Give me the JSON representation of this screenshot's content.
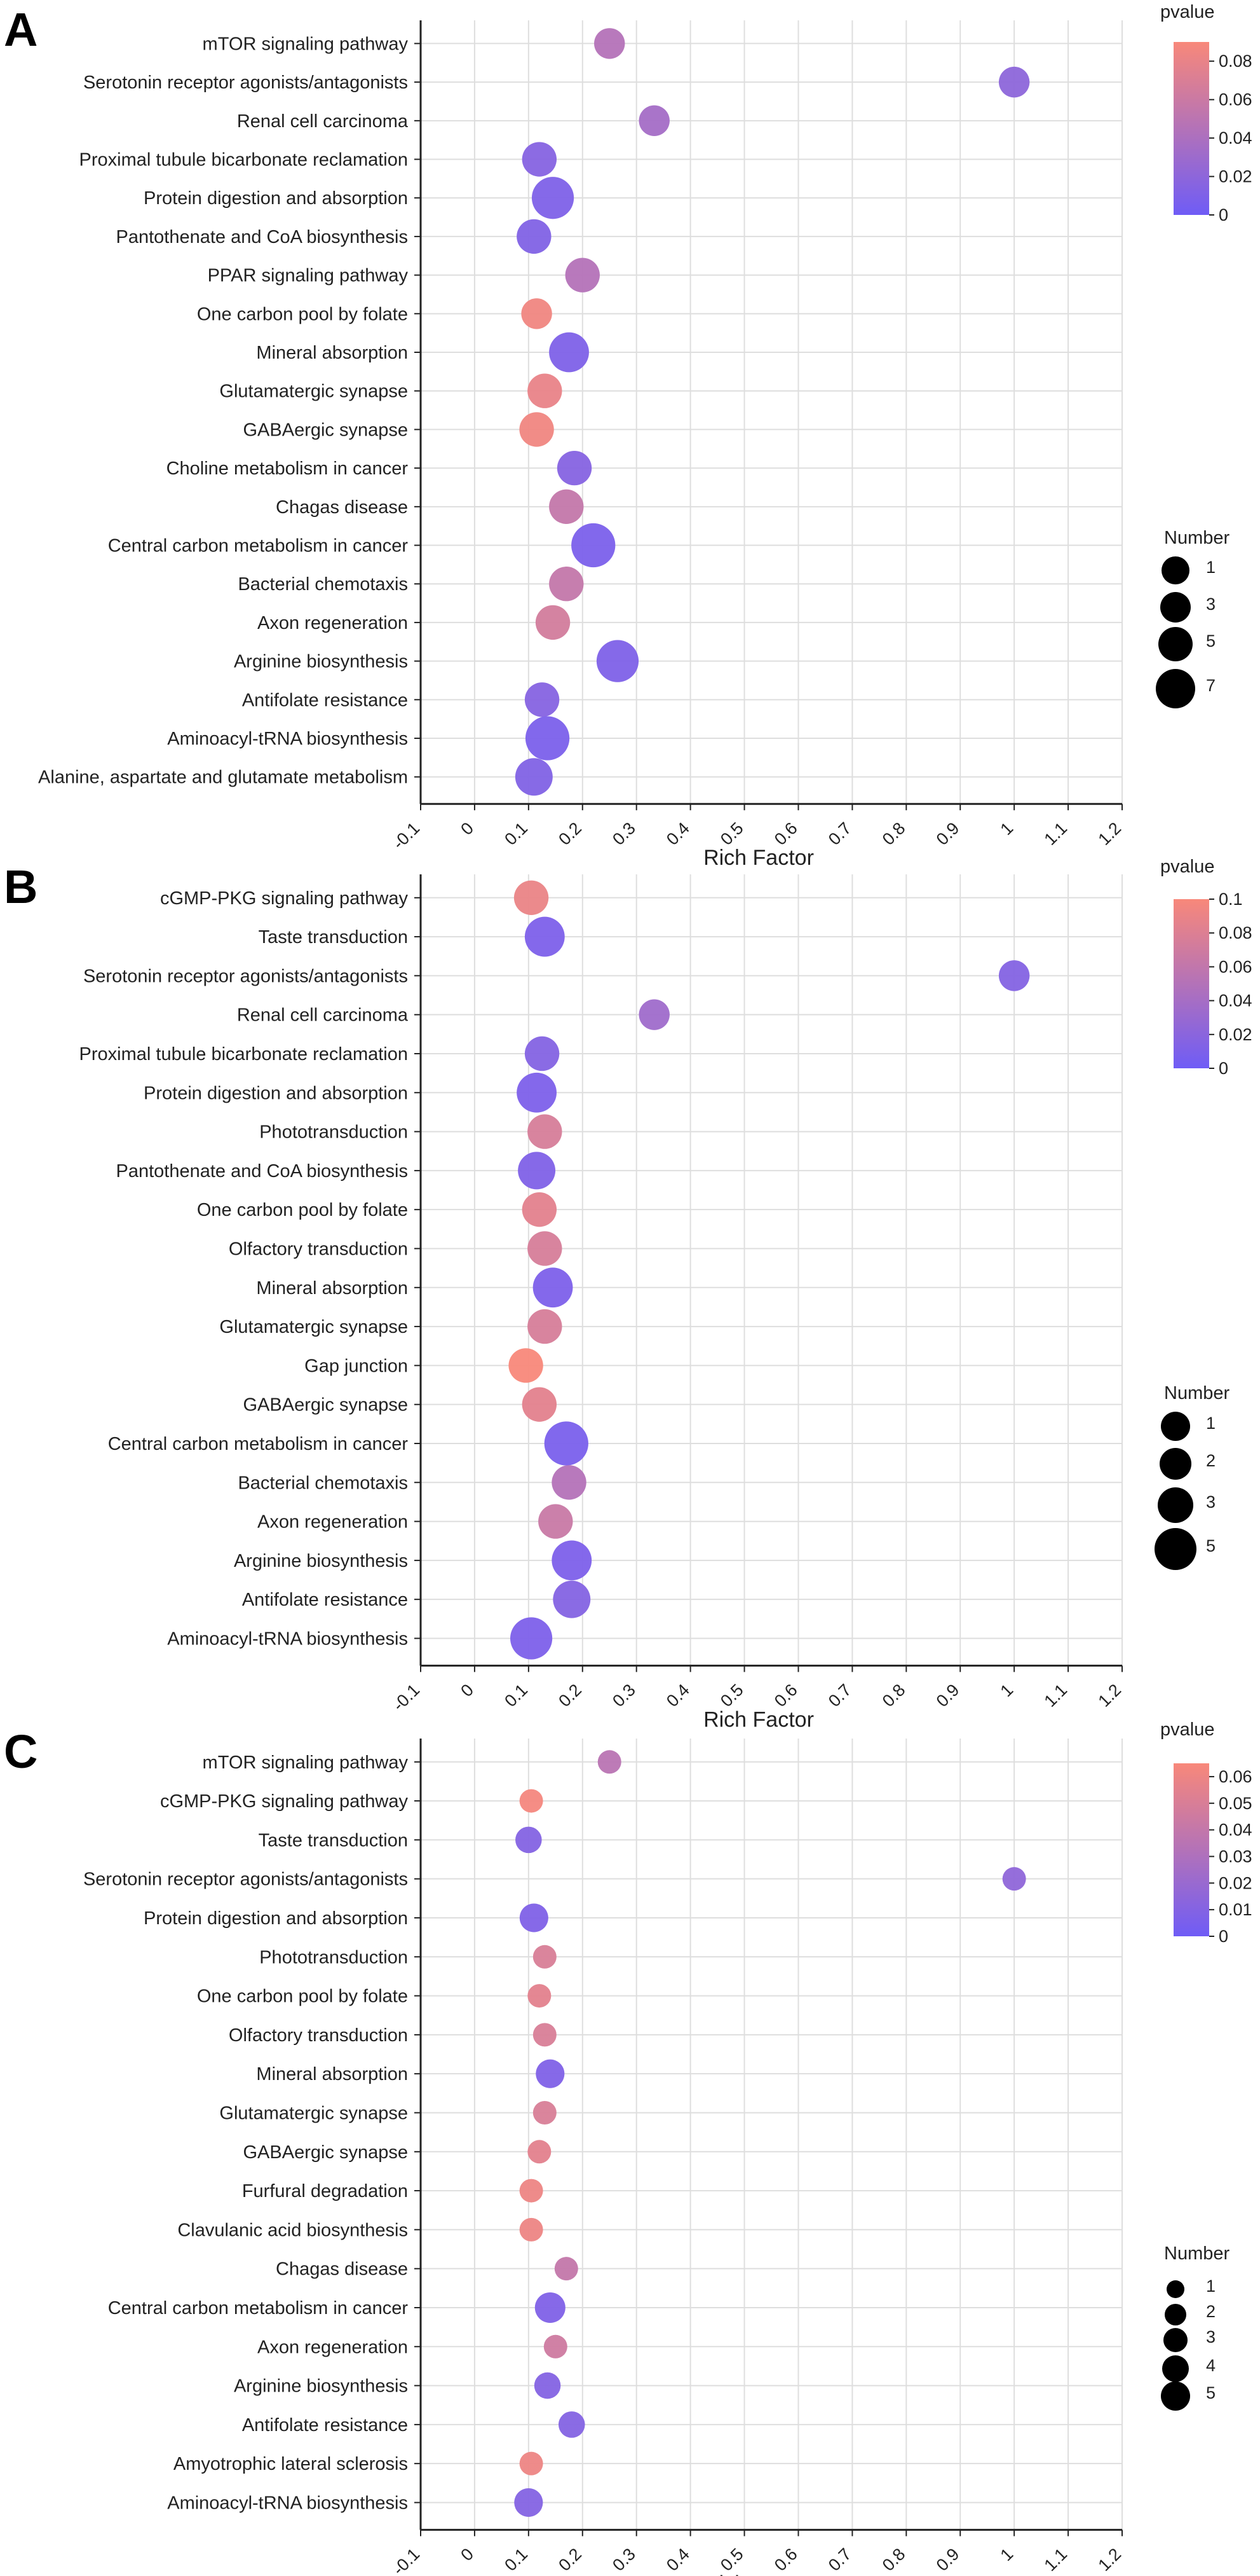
{
  "figure": {
    "x_axis_title": "Rich Factor",
    "pvalue_legend_title": "pvalue",
    "number_legend_title": "Number",
    "color_low": "#6f5cf6",
    "color_high": "#f8887a"
  },
  "chart_data": [
    {
      "panel": "A",
      "type": "scatter",
      "xlabel": "Rich Factor",
      "xlim": [
        -0.1,
        1.2
      ],
      "xticks": [
        "-0.1",
        "0",
        "0.1",
        "0.2",
        "0.3",
        "0.4",
        "0.5",
        "0.6",
        "0.7",
        "0.8",
        "0.9",
        "1",
        "1.1",
        "1.2"
      ],
      "grid": true,
      "pvalue_range": [
        0,
        0.09
      ],
      "pvalue_ticks": [
        "0.08",
        "0.06",
        "0.04",
        "0.02",
        "0"
      ],
      "number_ticks": [
        "1",
        "3",
        "5",
        "7"
      ],
      "points": [
        {
          "term": "mTOR signaling pathway",
          "rich_factor": 0.25,
          "pvalue": 0.045,
          "number": 1
        },
        {
          "term": "Serotonin receptor agonists/antagonists",
          "rich_factor": 1.0,
          "pvalue": 0.02,
          "number": 1
        },
        {
          "term": "Renal cell carcinoma",
          "rich_factor": 0.333,
          "pvalue": 0.035,
          "number": 1
        },
        {
          "term": "Proximal tubule bicarbonate reclamation",
          "rich_factor": 0.12,
          "pvalue": 0.015,
          "number": 2
        },
        {
          "term": "Protein digestion and absorption",
          "rich_factor": 0.145,
          "pvalue": 0.01,
          "number": 5
        },
        {
          "term": "Pantothenate and CoA biosynthesis",
          "rich_factor": 0.11,
          "pvalue": 0.012,
          "number": 2
        },
        {
          "term": "PPAR signaling pathway",
          "rich_factor": 0.2,
          "pvalue": 0.045,
          "number": 2
        },
        {
          "term": "One carbon pool by folate",
          "rich_factor": 0.115,
          "pvalue": 0.085,
          "number": 1
        },
        {
          "term": "Mineral absorption",
          "rich_factor": 0.175,
          "pvalue": 0.01,
          "number": 4
        },
        {
          "term": "Glutamatergic synapse",
          "rich_factor": 0.13,
          "pvalue": 0.08,
          "number": 2
        },
        {
          "term": "GABAergic synapse",
          "rich_factor": 0.115,
          "pvalue": 0.085,
          "number": 2
        },
        {
          "term": "Choline metabolism in cancer",
          "rich_factor": 0.185,
          "pvalue": 0.015,
          "number": 2
        },
        {
          "term": "Chagas disease",
          "rich_factor": 0.17,
          "pvalue": 0.055,
          "number": 2
        },
        {
          "term": "Central carbon metabolism in cancer",
          "rich_factor": 0.22,
          "pvalue": 0.008,
          "number": 6
        },
        {
          "term": "Bacterial chemotaxis",
          "rich_factor": 0.17,
          "pvalue": 0.055,
          "number": 2
        },
        {
          "term": "Axon regeneration",
          "rich_factor": 0.145,
          "pvalue": 0.065,
          "number": 2
        },
        {
          "term": "Arginine biosynthesis",
          "rich_factor": 0.265,
          "pvalue": 0.01,
          "number": 5
        },
        {
          "term": "Antifolate resistance",
          "rich_factor": 0.125,
          "pvalue": 0.015,
          "number": 2
        },
        {
          "term": "Aminoacyl-tRNA biosynthesis",
          "rich_factor": 0.135,
          "pvalue": 0.008,
          "number": 6
        },
        {
          "term": "Alanine, aspartate and glutamate metabolism",
          "rich_factor": 0.11,
          "pvalue": 0.012,
          "number": 3
        }
      ]
    },
    {
      "panel": "B",
      "type": "scatter",
      "xlabel": "Rich Factor",
      "xlim": [
        -0.1,
        1.2
      ],
      "xticks": [
        "-0.1",
        "0",
        "0.1",
        "0.2",
        "0.3",
        "0.4",
        "0.5",
        "0.6",
        "0.7",
        "0.8",
        "0.9",
        "1",
        "1.1",
        "1.2"
      ],
      "grid": true,
      "pvalue_range": [
        0,
        0.1
      ],
      "pvalue_ticks": [
        "0.1",
        "0.08",
        "0.06",
        "0.04",
        "0.02",
        "0"
      ],
      "number_ticks": [
        "1",
        "2",
        "3",
        "5"
      ],
      "points": [
        {
          "term": "cGMP-PKG signaling pathway",
          "rich_factor": 0.105,
          "pvalue": 0.09,
          "number": 2
        },
        {
          "term": "Taste transduction",
          "rich_factor": 0.13,
          "pvalue": 0.01,
          "number": 4
        },
        {
          "term": "Serotonin receptor agonists/antagonists",
          "rich_factor": 1.0,
          "pvalue": 0.015,
          "number": 1
        },
        {
          "term": "Renal cell carcinoma",
          "rich_factor": 0.333,
          "pvalue": 0.035,
          "number": 1
        },
        {
          "term": "Proximal tubule bicarbonate reclamation",
          "rich_factor": 0.125,
          "pvalue": 0.015,
          "number": 2
        },
        {
          "term": "Protein digestion and absorption",
          "rich_factor": 0.115,
          "pvalue": 0.01,
          "number": 4
        },
        {
          "term": "Phototransduction",
          "rich_factor": 0.13,
          "pvalue": 0.075,
          "number": 2
        },
        {
          "term": "Pantothenate and CoA biosynthesis",
          "rich_factor": 0.115,
          "pvalue": 0.012,
          "number": 3
        },
        {
          "term": "One carbon pool by folate",
          "rich_factor": 0.12,
          "pvalue": 0.085,
          "number": 2
        },
        {
          "term": "Olfactory transduction",
          "rich_factor": 0.13,
          "pvalue": 0.075,
          "number": 2
        },
        {
          "term": "Mineral absorption",
          "rich_factor": 0.145,
          "pvalue": 0.01,
          "number": 4
        },
        {
          "term": "Glutamatergic synapse",
          "rich_factor": 0.13,
          "pvalue": 0.075,
          "number": 2
        },
        {
          "term": "Gap junction",
          "rich_factor": 0.095,
          "pvalue": 0.1,
          "number": 2
        },
        {
          "term": "GABAergic synapse",
          "rich_factor": 0.12,
          "pvalue": 0.085,
          "number": 2
        },
        {
          "term": "Central carbon metabolism in cancer",
          "rich_factor": 0.17,
          "pvalue": 0.008,
          "number": 6
        },
        {
          "term": "Bacterial chemotaxis",
          "rich_factor": 0.175,
          "pvalue": 0.05,
          "number": 2
        },
        {
          "term": "Axon regeneration",
          "rich_factor": 0.15,
          "pvalue": 0.065,
          "number": 2
        },
        {
          "term": "Arginine biosynthesis",
          "rich_factor": 0.18,
          "pvalue": 0.01,
          "number": 4
        },
        {
          "term": "Antifolate resistance",
          "rich_factor": 0.18,
          "pvalue": 0.015,
          "number": 3
        },
        {
          "term": "Aminoacyl-tRNA biosynthesis",
          "rich_factor": 0.105,
          "pvalue": 0.01,
          "number": 5
        }
      ]
    },
    {
      "panel": "C",
      "type": "scatter",
      "xlabel": "Rich Factor",
      "xlim": [
        -0.1,
        1.2
      ],
      "xticks": [
        "-0.1",
        "0",
        "0.1",
        "0.2",
        "0.3",
        "0.4",
        "0.5",
        "0.6",
        "0.7",
        "0.8",
        "0.9",
        "1",
        "1.1",
        "1.2"
      ],
      "grid": true,
      "pvalue_range": [
        0,
        0.065
      ],
      "pvalue_ticks": [
        "0.06",
        "0.05",
        "0.04",
        "0.03",
        "0.02",
        "0.01",
        "0"
      ],
      "number_ticks": [
        "1",
        "2",
        "3",
        "4",
        "5"
      ],
      "points": [
        {
          "term": "mTOR signaling pathway",
          "rich_factor": 0.25,
          "pvalue": 0.035,
          "number": 1
        },
        {
          "term": "cGMP-PKG signaling pathway",
          "rich_factor": 0.105,
          "pvalue": 0.063,
          "number": 1
        },
        {
          "term": "Taste transduction",
          "rich_factor": 0.1,
          "pvalue": 0.01,
          "number": 2
        },
        {
          "term": "Serotonin receptor agonists/antagonists",
          "rich_factor": 1.0,
          "pvalue": 0.015,
          "number": 1
        },
        {
          "term": "Protein digestion and absorption",
          "rich_factor": 0.11,
          "pvalue": 0.008,
          "number": 3
        },
        {
          "term": "Phototransduction",
          "rich_factor": 0.13,
          "pvalue": 0.05,
          "number": 1
        },
        {
          "term": "One carbon pool by folate",
          "rich_factor": 0.12,
          "pvalue": 0.055,
          "number": 1
        },
        {
          "term": "Olfactory transduction",
          "rich_factor": 0.13,
          "pvalue": 0.05,
          "number": 1
        },
        {
          "term": "Mineral absorption",
          "rich_factor": 0.14,
          "pvalue": 0.008,
          "number": 3
        },
        {
          "term": "Glutamatergic synapse",
          "rich_factor": 0.13,
          "pvalue": 0.05,
          "number": 1
        },
        {
          "term": "GABAergic synapse",
          "rich_factor": 0.12,
          "pvalue": 0.055,
          "number": 1
        },
        {
          "term": "Furfural degradation",
          "rich_factor": 0.105,
          "pvalue": 0.06,
          "number": 1
        },
        {
          "term": "Clavulanic acid biosynthesis",
          "rich_factor": 0.105,
          "pvalue": 0.06,
          "number": 1
        },
        {
          "term": "Chagas disease",
          "rich_factor": 0.17,
          "pvalue": 0.04,
          "number": 1
        },
        {
          "term": "Central carbon metabolism in cancer",
          "rich_factor": 0.14,
          "pvalue": 0.008,
          "number": 4
        },
        {
          "term": "Axon regeneration",
          "rich_factor": 0.15,
          "pvalue": 0.045,
          "number": 1
        },
        {
          "term": "Arginine biosynthesis",
          "rich_factor": 0.135,
          "pvalue": 0.01,
          "number": 2
        },
        {
          "term": "Antifolate resistance",
          "rich_factor": 0.18,
          "pvalue": 0.01,
          "number": 2
        },
        {
          "term": "Amyotrophic lateral sclerosis",
          "rich_factor": 0.105,
          "pvalue": 0.06,
          "number": 1
        },
        {
          "term": "Aminoacyl-tRNA biosynthesis",
          "rich_factor": 0.1,
          "pvalue": 0.01,
          "number": 3
        }
      ]
    }
  ]
}
